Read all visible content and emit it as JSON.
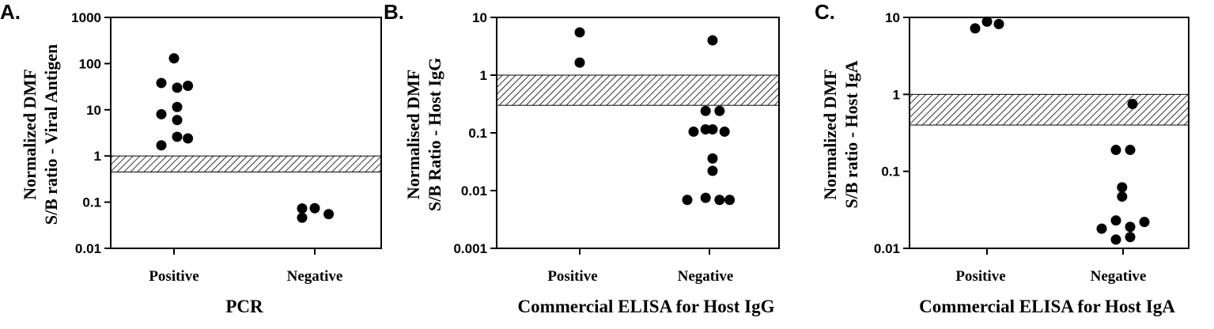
{
  "chart_data": [
    {
      "type": "scatter",
      "panel_label": "A.",
      "ylabel_lines": [
        "Normalized DMF",
        "S/B ratio - Viral Antigen"
      ],
      "xlabel": "PCR",
      "categories": [
        "Positive",
        "Negative"
      ],
      "yscale": "log",
      "ylim": [
        0.01,
        1000
      ],
      "yticks": [
        "0.01",
        "0.1",
        "1",
        "10",
        "100",
        "1000"
      ],
      "ytick_values": [
        0.01,
        0.1,
        1,
        10,
        100,
        1000
      ],
      "hatched_band": [
        0.45,
        1.0
      ],
      "grid": false,
      "points": [
        {
          "category": "Positive",
          "offset": 0.0,
          "value": 130
        },
        {
          "category": "Positive",
          "offset": -0.2,
          "value": 38
        },
        {
          "category": "Positive",
          "offset": 0.05,
          "value": 30
        },
        {
          "category": "Positive",
          "offset": 0.22,
          "value": 33
        },
        {
          "category": "Positive",
          "offset": 0.05,
          "value": 11.5
        },
        {
          "category": "Positive",
          "offset": -0.2,
          "value": 8
        },
        {
          "category": "Positive",
          "offset": 0.05,
          "value": 6
        },
        {
          "category": "Positive",
          "offset": -0.2,
          "value": 1.7
        },
        {
          "category": "Positive",
          "offset": 0.05,
          "value": 2.6
        },
        {
          "category": "Positive",
          "offset": 0.22,
          "value": 2.4
        },
        {
          "category": "Negative",
          "offset": -0.2,
          "value": 0.073
        },
        {
          "category": "Negative",
          "offset": -0.2,
          "value": 0.046
        },
        {
          "category": "Negative",
          "offset": 0.0,
          "value": 0.074
        },
        {
          "category": "Negative",
          "offset": 0.22,
          "value": 0.055
        }
      ]
    },
    {
      "type": "scatter",
      "panel_label": "B.",
      "ylabel_lines": [
        "Normalised DMF",
        "S/B Ratio - Host IgG"
      ],
      "xlabel": "Commercial ELISA for Host IgG",
      "categories": [
        "Positive",
        "Negative"
      ],
      "yscale": "log",
      "ylim": [
        0.001,
        10
      ],
      "yticks": [
        "0.001",
        "0.01",
        "0.1",
        "1",
        "10"
      ],
      "ytick_values": [
        0.001,
        0.01,
        0.1,
        1,
        10
      ],
      "hatched_band": [
        0.3,
        1.0
      ],
      "grid": false,
      "points": [
        {
          "category": "Positive",
          "offset": 0.0,
          "value": 5.5
        },
        {
          "category": "Positive",
          "offset": 0.0,
          "value": 1.65
        },
        {
          "category": "Negative",
          "offset": 0.05,
          "value": 4.0
        },
        {
          "category": "Negative",
          "offset": -0.06,
          "value": 0.24
        },
        {
          "category": "Negative",
          "offset": 0.16,
          "value": 0.24
        },
        {
          "category": "Negative",
          "offset": -0.25,
          "value": 0.105
        },
        {
          "category": "Negative",
          "offset": -0.06,
          "value": 0.115
        },
        {
          "category": "Negative",
          "offset": 0.05,
          "value": 0.115
        },
        {
          "category": "Negative",
          "offset": 0.24,
          "value": 0.105
        },
        {
          "category": "Negative",
          "offset": 0.05,
          "value": 0.036
        },
        {
          "category": "Negative",
          "offset": 0.05,
          "value": 0.022
        },
        {
          "category": "Negative",
          "offset": -0.35,
          "value": 0.0069
        },
        {
          "category": "Negative",
          "offset": -0.06,
          "value": 0.0075
        },
        {
          "category": "Negative",
          "offset": 0.16,
          "value": 0.0069
        },
        {
          "category": "Negative",
          "offset": 0.32,
          "value": 0.0069
        }
      ]
    },
    {
      "type": "scatter",
      "panel_label": "C.",
      "ylabel_lines": [
        "Normalized DMF",
        "S/B ratio - Host IgA"
      ],
      "xlabel": "Commercial ELISA for Host IgA",
      "categories": [
        "Positive",
        "Negative"
      ],
      "yscale": "log",
      "ylim": [
        0.01,
        10
      ],
      "yticks": [
        "0.01",
        "0.1",
        "1",
        "10"
      ],
      "ytick_values": [
        0.01,
        0.1,
        1,
        10
      ],
      "hatched_band": [
        0.4,
        1.0
      ],
      "grid": false,
      "points": [
        {
          "category": "Positive",
          "offset": -0.25,
          "value": 7.2
        },
        {
          "category": "Positive",
          "offset": 0.0,
          "value": 8.8
        },
        {
          "category": "Positive",
          "offset": 0.25,
          "value": 8.2
        },
        {
          "category": "Negative",
          "offset": 0.2,
          "value": 0.75
        },
        {
          "category": "Negative",
          "offset": -0.15,
          "value": 0.19
        },
        {
          "category": "Negative",
          "offset": 0.15,
          "value": 0.19
        },
        {
          "category": "Negative",
          "offset": -0.02,
          "value": 0.062
        },
        {
          "category": "Negative",
          "offset": -0.02,
          "value": 0.047
        },
        {
          "category": "Negative",
          "offset": -0.45,
          "value": 0.018
        },
        {
          "category": "Negative",
          "offset": -0.15,
          "value": 0.023
        },
        {
          "category": "Negative",
          "offset": 0.15,
          "value": 0.019
        },
        {
          "category": "Negative",
          "offset": 0.45,
          "value": 0.022
        },
        {
          "category": "Negative",
          "offset": -0.15,
          "value": 0.013
        },
        {
          "category": "Negative",
          "offset": 0.15,
          "value": 0.014
        }
      ]
    }
  ]
}
